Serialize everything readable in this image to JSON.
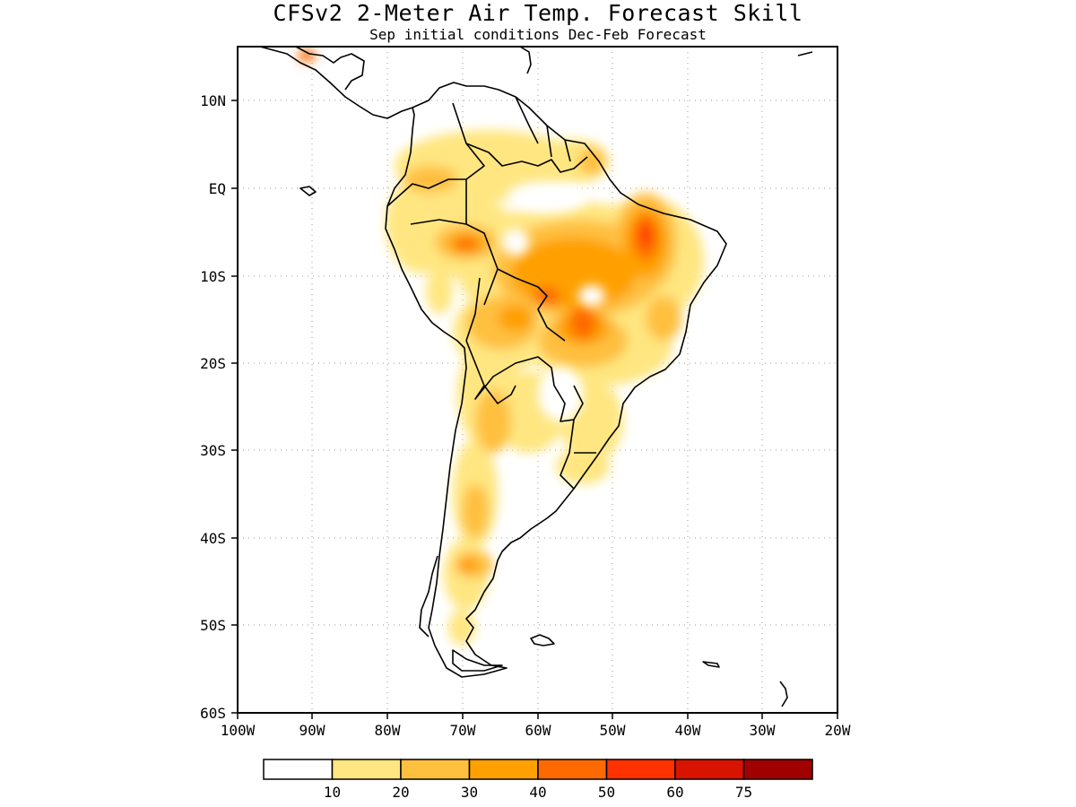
{
  "title": "CFSv2 2-Meter Air Temp. Forecast Skill",
  "subtitle": "Sep initial conditions  Dec-Feb Forecast",
  "map": {
    "region": "South America",
    "lon_range": [
      -100,
      -20
    ],
    "lat_range": [
      -60,
      16
    ],
    "gridlines": "dotted",
    "lat_ticks": [
      "10N",
      "EQ",
      "10S",
      "20S",
      "30S",
      "40S",
      "50S",
      "60S"
    ],
    "lon_ticks": [
      "100W",
      "90W",
      "80W",
      "70W",
      "60W",
      "50W",
      "40W",
      "30W",
      "20W"
    ]
  },
  "legend": {
    "labels": [
      "10",
      "20",
      "30",
      "40",
      "50",
      "60",
      "75"
    ],
    "colors": [
      "#ffffff",
      "#ffe680",
      "#ffc040",
      "#ffa000",
      "#ff6a00",
      "#ff3200",
      "#d81400",
      "#a00000"
    ]
  }
}
